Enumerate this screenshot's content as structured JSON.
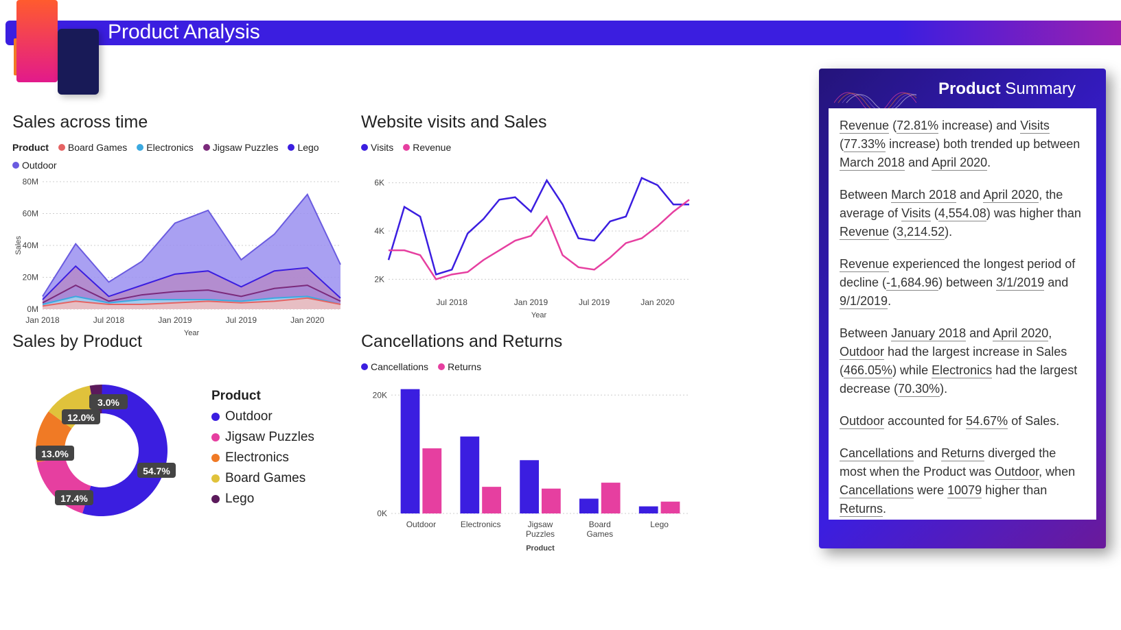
{
  "page_title": "Product Analysis",
  "colors": {
    "banner_start": "#3b1ee0",
    "banner_end": "#9b1fb0",
    "board_games": "#e56363",
    "electronics": "#3ba9e0",
    "jigsaw": "#7b2a7b",
    "lego": "#3b1ee0",
    "outdoor": "#6a5be0",
    "visits": "#3b1ee0",
    "revenue": "#e63fa0",
    "donut_outdoor": "#3b1ee0",
    "donut_jigsaw": "#e63fa0",
    "donut_elec": "#f07a25",
    "donut_board": "#e0c23b",
    "donut_lego": "#5b1a5b",
    "cancel": "#3b1ee0",
    "returns": "#e63fa0",
    "grid": "#cccccc",
    "bg": "#ffffff"
  },
  "sales_time": {
    "title": "Sales across time",
    "legend_label": "Product",
    "series_names": [
      "Board Games",
      "Electronics",
      "Jigsaw Puzzles",
      "Lego",
      "Outdoor"
    ],
    "x_labels": [
      "Jan 2018",
      "Jul 2018",
      "Jan 2019",
      "Jul 2019",
      "Jan 2020"
    ],
    "x_axis_title": "Year",
    "y_axis_title": "Sales",
    "y_ticks": [
      "0M",
      "20M",
      "40M",
      "60M",
      "80M"
    ],
    "ylim": [
      0,
      80
    ],
    "x_points": [
      "Jan18",
      "Apr18",
      "Jul18",
      "Oct18",
      "Jan19",
      "Apr19",
      "Jul19",
      "Oct19",
      "Jan20",
      "Apr20"
    ],
    "stack": {
      "board": [
        2,
        5,
        3,
        3,
        4,
        5,
        4,
        5,
        7,
        3
      ],
      "elec": [
        3,
        8,
        4,
        6,
        6,
        6,
        5,
        7,
        8,
        3
      ],
      "jigsaw": [
        4,
        15,
        5,
        9,
        11,
        12,
        8,
        13,
        15,
        5
      ],
      "lego": [
        6,
        27,
        8,
        15,
        22,
        24,
        14,
        24,
        26,
        7
      ],
      "outdoor": [
        8,
        41,
        17,
        30,
        54,
        62,
        31,
        47,
        72,
        28
      ]
    }
  },
  "visits_sales": {
    "title": "Website visits and Sales",
    "series_names": [
      "Visits",
      "Revenue"
    ],
    "x_labels": [
      "Jul 2018",
      "Jan 2019",
      "Jul 2019",
      "Jan 2020"
    ],
    "x_axis_title": "Year",
    "y_ticks": [
      "2K",
      "4K",
      "6K"
    ],
    "ylim": [
      1.5,
      6.5
    ],
    "visits": [
      2.8,
      5.0,
      4.6,
      2.2,
      2.4,
      3.9,
      4.5,
      5.3,
      5.4,
      4.8,
      6.1,
      5.1,
      3.7,
      3.6,
      4.4,
      4.6,
      6.2,
      5.9,
      5.1,
      5.1
    ],
    "revenue": [
      3.2,
      3.2,
      3.0,
      2.0,
      2.2,
      2.3,
      2.8,
      3.2,
      3.6,
      3.8,
      4.6,
      3.0,
      2.5,
      2.4,
      2.9,
      3.5,
      3.7,
      4.2,
      4.8,
      5.3
    ]
  },
  "sales_product": {
    "title": "Sales by Product",
    "legend_label": "Product",
    "items": [
      {
        "name": "Outdoor",
        "pct": 54.7,
        "color": "#3b1ee0"
      },
      {
        "name": "Jigsaw Puzzles",
        "pct": 17.4,
        "color": "#e63fa0"
      },
      {
        "name": "Electronics",
        "pct": 13.0,
        "color": "#f07a25"
      },
      {
        "name": "Board Games",
        "pct": 12.0,
        "color": "#e0c23b"
      },
      {
        "name": "Lego",
        "pct": 3.0,
        "color": "#5b1a5b"
      }
    ],
    "labels": [
      "54.7%",
      "17.4%",
      "13.0%",
      "12.0%",
      "3.0%"
    ]
  },
  "cancel_returns": {
    "title": "Cancellations and Returns",
    "series_names": [
      "Cancellations",
      "Returns"
    ],
    "x_axis_title": "Product",
    "y_ticks": [
      "0K",
      "20K"
    ],
    "ylim": [
      0,
      22
    ],
    "categories": [
      "Outdoor",
      "Electronics",
      "Jigsaw Puzzles",
      "Board Games",
      "Lego"
    ],
    "cat_labels": [
      "Outdoor",
      "Electronics",
      "Jigsaw\nPuzzles",
      "Board\nGames",
      "Lego"
    ],
    "cancellations": [
      21,
      13,
      9,
      2.5,
      1.2
    ],
    "returns": [
      11,
      4.5,
      4.2,
      5.2,
      2.0
    ]
  },
  "summary": {
    "title_bold": "Product",
    "title_rest": " Summary",
    "paragraphs": [
      "<span class='ul'>Revenue</span> (<span class='ul'>72.81%</span> increase) and <span class='ul'>Visits</span> (<span class='ul'>77.33%</span> increase) both trended up between <span class='ul'>March 2018</span> and <span class='ul'>April 2020</span>.",
      "Between <span class='ul'>March 2018</span> and <span class='ul'>April 2020</span>, the average of <span class='ul'>Visits</span> (<span class='ul'>4,554.08</span>) was higher than <span class='ul'>Revenue</span> (<span class='ul'>3,214.52</span>).",
      "<span class='ul'>Revenue</span> experienced the longest period of decline (<span class='ul'>-1,684.96</span>) between <span class='ul'>3/1/2019</span> and <span class='ul'>9/1/2019</span>.",
      "Between <span class='ul'>January 2018</span> and <span class='ul'>April 2020</span>, <span class='ul'>Outdoor</span> had the largest increase in Sales (<span class='ul'>466.05%</span>) while <span class='ul'>Electronics</span> had the largest decrease (<span class='ul'>70.30%</span>).",
      "<span class='ul'>Outdoor</span> accounted for <span class='ul'>54.67%</span> of Sales.",
      "<span class='ul'>Cancellations</span> and <span class='ul'>Returns</span> diverged the most when the Product was <span class='ul'>Outdoor</span>, when <span class='ul'>Cancellations</span> were <span class='ul'>10079</span> higher than <span class='ul'>Returns</span>."
    ]
  }
}
